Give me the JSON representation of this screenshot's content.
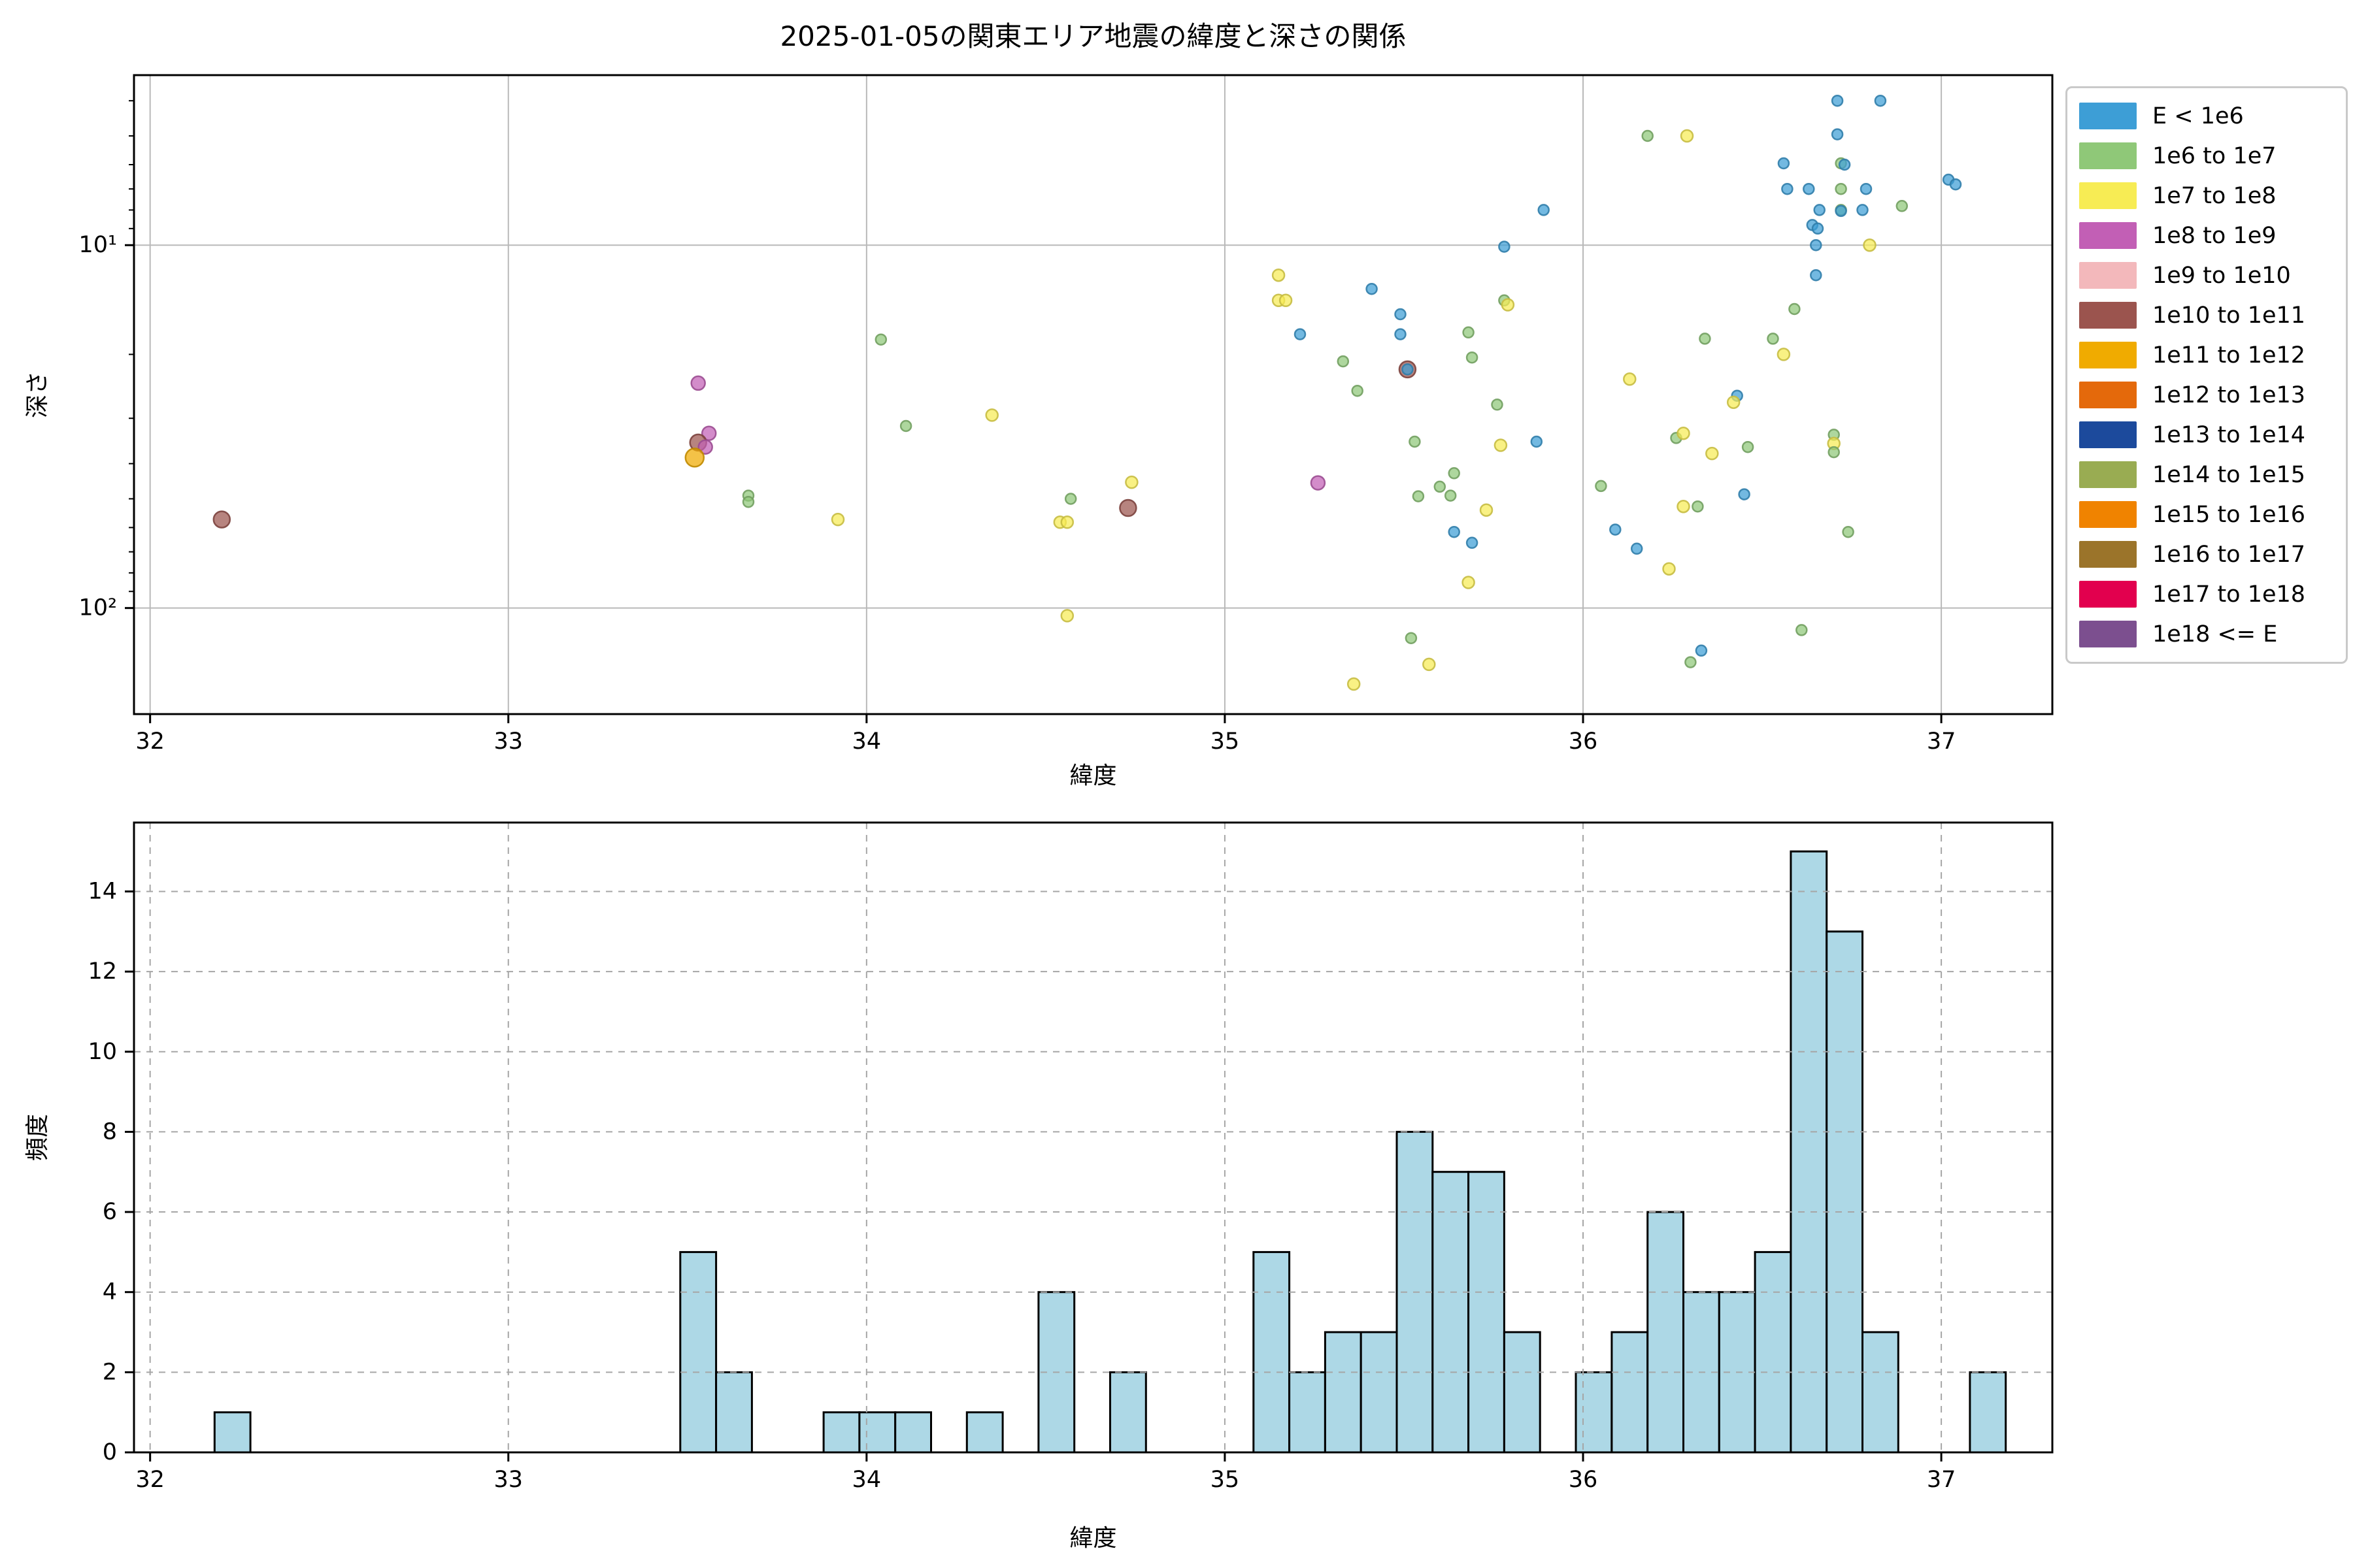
{
  "chart_data": [
    {
      "type": "scatter",
      "title": "2025-01-05の関東エリア地震の緯度と深さの関係",
      "xlabel": "緯度",
      "ylabel": "深さ",
      "xlim": [
        31.955,
        37.31
      ],
      "xticks": [
        32,
        33,
        34,
        35,
        36,
        37
      ],
      "yscale": "log",
      "y_inverted": true,
      "ylim_top_to_bottom": [
        3.4,
        196
      ],
      "yticks": [
        {
          "value": 10,
          "label": "10¹"
        },
        {
          "value": 100,
          "label": "10²"
        }
      ],
      "yminorticks": [
        4,
        5,
        6,
        7,
        8,
        9,
        20,
        30,
        40,
        50,
        60,
        70,
        80,
        90
      ],
      "grid": "solid",
      "legend_position": "upper right outside",
      "categories": [
        {
          "id": "E_lt_1e6",
          "label": "E < 1e6",
          "color": "#3d9ed6",
          "radius": 8
        },
        {
          "id": "1e6_1e7",
          "label": "1e6 to 1e7",
          "color": "#8fc878",
          "radius": 8
        },
        {
          "id": "1e7_1e8",
          "label": "1e7 to 1e8",
          "color": "#f7ec54",
          "radius": 9
        },
        {
          "id": "1e8_1e9",
          "label": "1e8 to 1e9",
          "color": "#c25fb5",
          "radius": 10.5
        },
        {
          "id": "1e9_1e10",
          "label": "1e9 to 1e10",
          "color": "#f3b8bb",
          "radius": 11.5
        },
        {
          "id": "1e10_1e11",
          "label": "1e10 to 1e11",
          "color": "#9b544e",
          "radius": 12.5
        },
        {
          "id": "1e11_1e12",
          "label": "1e11 to 1e12",
          "color": "#f0ab00",
          "radius": 14
        },
        {
          "id": "1e12_1e13",
          "label": "1e12 to 1e13",
          "color": "#e4690b",
          "radius": 15
        },
        {
          "id": "1e13_1e14",
          "label": "1e13 to 1e14",
          "color": "#1c4a9c",
          "radius": 16
        },
        {
          "id": "1e14_1e15",
          "label": "1e14 to 1e15",
          "color": "#99ac52",
          "radius": 17
        },
        {
          "id": "1e15_1e16",
          "label": "1e15 to 1e16",
          "color": "#f08300",
          "radius": 18
        },
        {
          "id": "1e16_1e17",
          "label": "1e16 to 1e17",
          "color": "#9b742a",
          "radius": 19
        },
        {
          "id": "1e17_1e18",
          "label": "1e17 to 1e18",
          "color": "#e2004e",
          "radius": 20
        },
        {
          "id": "1e18_le_E",
          "label": "1e18 <= E",
          "color": "#7c4f8f",
          "radius": 21
        }
      ],
      "points_format": [
        "latitude",
        "depth_km",
        "category_index"
      ],
      "points": [
        [
          32.2,
          57,
          5
        ],
        [
          33.53,
          24,
          3
        ],
        [
          33.56,
          33,
          3
        ],
        [
          33.53,
          35,
          5
        ],
        [
          33.55,
          36,
          3
        ],
        [
          33.52,
          38.5,
          6
        ],
        [
          33.67,
          49,
          1
        ],
        [
          33.67,
          51,
          1
        ],
        [
          33.92,
          57,
          2
        ],
        [
          34.04,
          18.2,
          1
        ],
        [
          34.11,
          31.5,
          1
        ],
        [
          34.35,
          29.4,
          2
        ],
        [
          34.74,
          45,
          2
        ],
        [
          34.57,
          50,
          1
        ],
        [
          34.73,
          53,
          5
        ],
        [
          34.54,
          58,
          2
        ],
        [
          34.56,
          58,
          2
        ],
        [
          34.56,
          105,
          2
        ],
        [
          35.15,
          12.1,
          2
        ],
        [
          35.15,
          14.2,
          2
        ],
        [
          35.17,
          14.2,
          2
        ],
        [
          35.21,
          17.6,
          0
        ],
        [
          35.41,
          13.2,
          0
        ],
        [
          35.49,
          15.5,
          0
        ],
        [
          35.49,
          17.6,
          0
        ],
        [
          35.33,
          20.9,
          1
        ],
        [
          35.51,
          22,
          5
        ],
        [
          35.51,
          22,
          0
        ],
        [
          35.37,
          25.2,
          1
        ],
        [
          35.68,
          17.4,
          1
        ],
        [
          35.69,
          20.4,
          1
        ],
        [
          35.78,
          14.2,
          1
        ],
        [
          35.79,
          14.6,
          2
        ],
        [
          35.76,
          27.5,
          1
        ],
        [
          35.53,
          34.8,
          1
        ],
        [
          35.77,
          35.6,
          2
        ],
        [
          35.87,
          34.8,
          0
        ],
        [
          35.26,
          45.2,
          3
        ],
        [
          35.64,
          42.5,
          1
        ],
        [
          35.6,
          46.3,
          1
        ],
        [
          35.54,
          49.2,
          1
        ],
        [
          35.63,
          49,
          1
        ],
        [
          35.73,
          53.7,
          2
        ],
        [
          35.64,
          61.7,
          0
        ],
        [
          35.69,
          66.1,
          0
        ],
        [
          35.68,
          85,
          2
        ],
        [
          35.52,
          121,
          1
        ],
        [
          35.57,
          143,
          2
        ],
        [
          35.36,
          162,
          2
        ],
        [
          35.89,
          8.0,
          0
        ],
        [
          35.78,
          10.1,
          0
        ],
        [
          36.18,
          5.0,
          1
        ],
        [
          36.29,
          5.0,
          2
        ],
        [
          36.56,
          5.95,
          0
        ],
        [
          36.57,
          7.0,
          0
        ],
        [
          36.63,
          7.0,
          0
        ],
        [
          36.66,
          8.0,
          0
        ],
        [
          36.64,
          8.8,
          0
        ],
        [
          36.655,
          9.0,
          0
        ],
        [
          36.65,
          10.0,
          0
        ],
        [
          36.65,
          12.1,
          0
        ],
        [
          36.59,
          15.0,
          1
        ],
        [
          36.34,
          18.1,
          1
        ],
        [
          36.53,
          18.1,
          1
        ],
        [
          36.56,
          20,
          2
        ],
        [
          36.13,
          23.4,
          2
        ],
        [
          36.71,
          4.0,
          0
        ],
        [
          36.83,
          4.0,
          0
        ],
        [
          36.71,
          4.95,
          0
        ],
        [
          36.72,
          5.95,
          1
        ],
        [
          36.73,
          6.0,
          0
        ],
        [
          36.72,
          7.0,
          1
        ],
        [
          36.79,
          7.0,
          0
        ],
        [
          37.02,
          6.6,
          0
        ],
        [
          37.04,
          6.8,
          0
        ],
        [
          36.72,
          8.0,
          1
        ],
        [
          36.72,
          8.05,
          0
        ],
        [
          36.78,
          8.0,
          0
        ],
        [
          36.89,
          7.8,
          1
        ],
        [
          36.8,
          10.0,
          2
        ],
        [
          36.43,
          26,
          0
        ],
        [
          36.42,
          27.1,
          2
        ],
        [
          36.26,
          34,
          1
        ],
        [
          36.28,
          33,
          2
        ],
        [
          36.36,
          37.5,
          2
        ],
        [
          36.46,
          36,
          1
        ],
        [
          36.7,
          33.3,
          1
        ],
        [
          36.7,
          35.2,
          2
        ],
        [
          36.7,
          37.2,
          1
        ],
        [
          36.05,
          46.1,
          1
        ],
        [
          36.45,
          48.6,
          0
        ],
        [
          36.28,
          52.5,
          2
        ],
        [
          36.32,
          52.5,
          1
        ],
        [
          36.09,
          60.8,
          0
        ],
        [
          36.74,
          61.7,
          1
        ],
        [
          36.15,
          68.6,
          0
        ],
        [
          36.24,
          78,
          2
        ],
        [
          36.61,
          115,
          1
        ],
        [
          36.33,
          131,
          0
        ],
        [
          36.3,
          141,
          1
        ]
      ]
    },
    {
      "type": "bar",
      "title": "",
      "xlabel": "緯度",
      "ylabel": "頻度",
      "xlim": [
        31.955,
        37.31
      ],
      "xticks": [
        32,
        33,
        34,
        35,
        36,
        37
      ],
      "ylim": [
        0,
        15.72
      ],
      "yticks": [
        0,
        2,
        4,
        6,
        8,
        10,
        12,
        14
      ],
      "grid": "dashed",
      "bar_color": "#add8e6",
      "bar_edge_color": "#000000",
      "bin_start": 32.18,
      "bin_width": 0.1,
      "counts": [
        1,
        0,
        0,
        0,
        0,
        0,
        0,
        0,
        0,
        0,
        0,
        0,
        0,
        5,
        2,
        0,
        0,
        1,
        1,
        1,
        0,
        1,
        0,
        4,
        0,
        2,
        0,
        0,
        0,
        5,
        2,
        3,
        3,
        8,
        7,
        7,
        3,
        0,
        2,
        3,
        6,
        4,
        4,
        5,
        15,
        13,
        3,
        0,
        0,
        2
      ]
    }
  ]
}
